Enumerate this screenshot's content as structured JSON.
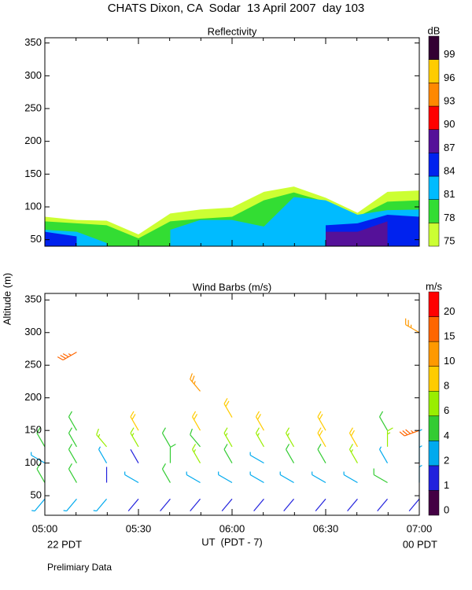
{
  "title": "CHATS Dixon, CA  Sodar  13 April 2007  day 103",
  "y_label": "Altitude (m)",
  "x_label": "UT  (PDT - 7)",
  "x_start_label": "22 PDT",
  "x_end_label": "00 PDT",
  "footer": "Prelimiary Data",
  "chart_data": [
    {
      "type": "contour",
      "title": "Reflectivity",
      "xlim": [
        5,
        7
      ],
      "xticks": [
        5,
        5.5,
        6,
        6.5,
        7
      ],
      "ylim": [
        40,
        358
      ],
      "yticks": [
        50,
        100,
        150,
        200,
        250,
        300,
        350
      ],
      "x": [
        5,
        5.17,
        5.33,
        5.5,
        5.67,
        5.83,
        6,
        6.17,
        6.33,
        6.5,
        6.67,
        6.83,
        7
      ],
      "series": [
        {
          "color": "#ccff33",
          "values": [
            85,
            80,
            79,
            58,
            90,
            96,
            99,
            123,
            131,
            114,
            91,
            123,
            125
          ]
        },
        {
          "color": "#33dd33",
          "values": [
            78,
            75,
            72,
            52,
            78,
            82,
            85,
            110,
            122,
            108,
            85,
            108,
            110
          ]
        },
        {
          "color": "#00bbff",
          "values": [
            65,
            62,
            45,
            null,
            65,
            80,
            80,
            70,
            115,
            110,
            88,
            95,
            96
          ]
        },
        {
          "color": "#0022ee",
          "values": [
            62,
            55,
            null,
            null,
            null,
            null,
            null,
            null,
            null,
            72,
            75,
            88,
            85
          ]
        },
        {
          "color": "#551199",
          "values": [
            null,
            null,
            null,
            null,
            null,
            null,
            null,
            null,
            null,
            62,
            62,
            78,
            null
          ]
        }
      ],
      "colorbar": {
        "label": "dB",
        "levels": [
          75,
          78,
          81,
          84,
          87,
          90,
          93,
          96,
          99
        ],
        "colors": [
          "#ccff33",
          "#33dd33",
          "#00bbff",
          "#0022ee",
          "#551199",
          "#ff0000",
          "#ff8800",
          "#ffcc00",
          "#330033"
        ]
      }
    },
    {
      "type": "barbs",
      "title": "Wind Barbs (m/s)",
      "xlim": [
        5,
        7
      ],
      "xticks": [
        {
          "value": 5,
          "label": "05:00"
        },
        {
          "value": 5.5,
          "label": "05:30"
        },
        {
          "value": 6,
          "label": "06:00"
        },
        {
          "value": 6.5,
          "label": "06:30"
        },
        {
          "value": 7,
          "label": "07:00"
        }
      ],
      "ylim": [
        20,
        360
      ],
      "yticks": [
        50,
        100,
        150,
        200,
        250,
        300,
        350
      ],
      "x": [
        5,
        5.17,
        5.33,
        5.5,
        5.67,
        5.83,
        6,
        6.17,
        6.33,
        6.5,
        6.67,
        6.83,
        7
      ],
      "rows": [
        {
          "altitude": 45,
          "speed": [
            2,
            2,
            2,
            1,
            1,
            1,
            1,
            1,
            1,
            1,
            1,
            1,
            1
          ],
          "direction": [
            220,
            220,
            220,
            220,
            220,
            220,
            220,
            220,
            220,
            220,
            220,
            220,
            220
          ]
        },
        {
          "altitude": 70,
          "speed": [
            4,
            4,
            1,
            2,
            4,
            2,
            2,
            2,
            2,
            2,
            2,
            4,
            2
          ],
          "direction": [
            330,
            330,
            0,
            300,
            330,
            300,
            300,
            300,
            300,
            300,
            300,
            300,
            0
          ]
        },
        {
          "altitude": 100,
          "speed": [
            2,
            4,
            2,
            1,
            4,
            6,
            4,
            2,
            4,
            4,
            6,
            2,
            2
          ],
          "direction": [
            300,
            330,
            330,
            330,
            0,
            330,
            330,
            300,
            330,
            330,
            330,
            330,
            0
          ]
        },
        {
          "altitude": 125,
          "speed": [
            4,
            4,
            6,
            6,
            4,
            4,
            6,
            6,
            6,
            8,
            8,
            6,
            2
          ],
          "direction": [
            330,
            330,
            320,
            330,
            330,
            320,
            330,
            330,
            330,
            330,
            330,
            0,
            0
          ]
        },
        {
          "altitude": 150,
          "speed": [
            null,
            4,
            null,
            8,
            null,
            8,
            null,
            8,
            null,
            8,
            null,
            4,
            15
          ],
          "direction": [
            null,
            330,
            null,
            330,
            null,
            330,
            null,
            330,
            null,
            330,
            null,
            330,
            250
          ]
        },
        {
          "altitude": 170,
          "speed": [
            null,
            null,
            null,
            null,
            null,
            null,
            8,
            null,
            null,
            null,
            null,
            null,
            null
          ],
          "direction": [
            null,
            null,
            null,
            null,
            null,
            null,
            330,
            null,
            null,
            null,
            null,
            null,
            null
          ]
        },
        {
          "altitude": 210,
          "speed": [
            null,
            null,
            null,
            null,
            null,
            10,
            null,
            null,
            null,
            null,
            null,
            null,
            null
          ],
          "direction": [
            null,
            null,
            null,
            null,
            null,
            320,
            null,
            null,
            null,
            null,
            null,
            null,
            null
          ]
        },
        {
          "altitude": 270,
          "speed": [
            null,
            15,
            null,
            null,
            null,
            null,
            null,
            null,
            null,
            null,
            null,
            null,
            null
          ],
          "direction": [
            null,
            240,
            null,
            null,
            null,
            null,
            null,
            null,
            null,
            null,
            null,
            null,
            null
          ]
        },
        {
          "altitude": 300,
          "speed": [
            null,
            null,
            null,
            null,
            null,
            null,
            null,
            null,
            null,
            null,
            null,
            null,
            10
          ],
          "direction": [
            null,
            null,
            null,
            null,
            null,
            null,
            null,
            null,
            null,
            null,
            null,
            null,
            300
          ]
        }
      ],
      "colorbar": {
        "label": "m/s",
        "levels": [
          0,
          1,
          2,
          4,
          6,
          8,
          10,
          15,
          20
        ],
        "colors": [
          "#440044",
          "#2222dd",
          "#00aaee",
          "#33cc33",
          "#99ee00",
          "#ffcc00",
          "#ff9900",
          "#ff6600",
          "#ff0000"
        ]
      }
    }
  ]
}
